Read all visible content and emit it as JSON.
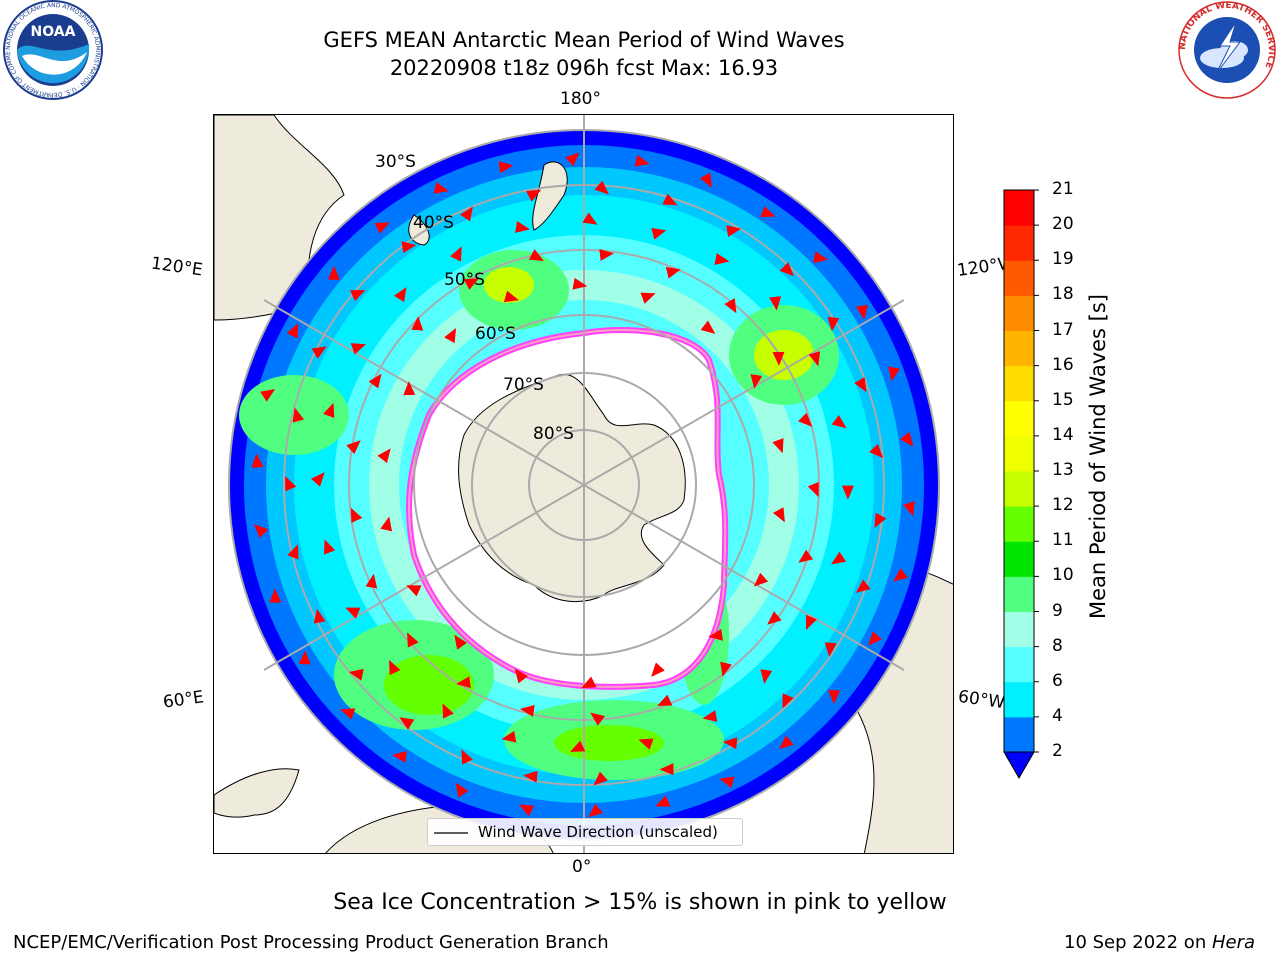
{
  "header": {
    "title_line1": "GEFS MEAN Antarctic Mean Period of Wind Waves",
    "title_line2": "20220908 t18z 096h fcst   Max: 16.93"
  },
  "logos": {
    "noaa_text": "NOAA",
    "noaa_ring": "NATIONAL OCEANIC AND ATMOSPHERIC ADMINISTRATION · U.S. DEPARTMENT OF COMMERCE",
    "nws_ring": "NATIONAL WEATHER SERVICE"
  },
  "map": {
    "projection": "south-polar-stereographic",
    "longitude_labels": [
      "180°",
      "120°E",
      "120°W",
      "60°E",
      "60°W",
      "0°"
    ],
    "latitude_labels": [
      "30°S",
      "40°S",
      "50°S",
      "60°S",
      "70°S",
      "80°S"
    ],
    "legend_label": "Wind Wave Direction (unscaled)",
    "land_color": "#efebdc",
    "sea_ice_colors": [
      "#ff40ff",
      "#ffa0c0",
      "#ffc040"
    ],
    "arrow_color": "#ff0000"
  },
  "colorbar": {
    "label": "Mean Period of Wind Waves [s]",
    "ticks": [
      "2",
      "4",
      "6",
      "8",
      "9",
      "10",
      "11",
      "12",
      "13",
      "14",
      "15",
      "16",
      "17",
      "18",
      "19",
      "20",
      "21"
    ],
    "colors": [
      "#0077ff",
      "#00c8ff",
      "#00f0ff",
      "#55ffff",
      "#a0ffe6",
      "#50ff80",
      "#00e600",
      "#64ff00",
      "#c8ff00",
      "#f0ff00",
      "#ffff00",
      "#ffdc00",
      "#ffb400",
      "#ff8c00",
      "#ff5a00",
      "#ff2800",
      "#ff0000"
    ],
    "under_color": "#0000ff"
  },
  "footer": {
    "note": "Sea Ice Concentration > 15% is shown in pink to yellow",
    "credit": "NCEP/EMC/Verification Post Processing Product Generation Branch",
    "date": "10 Sep 2022 on",
    "host": "Hera"
  }
}
